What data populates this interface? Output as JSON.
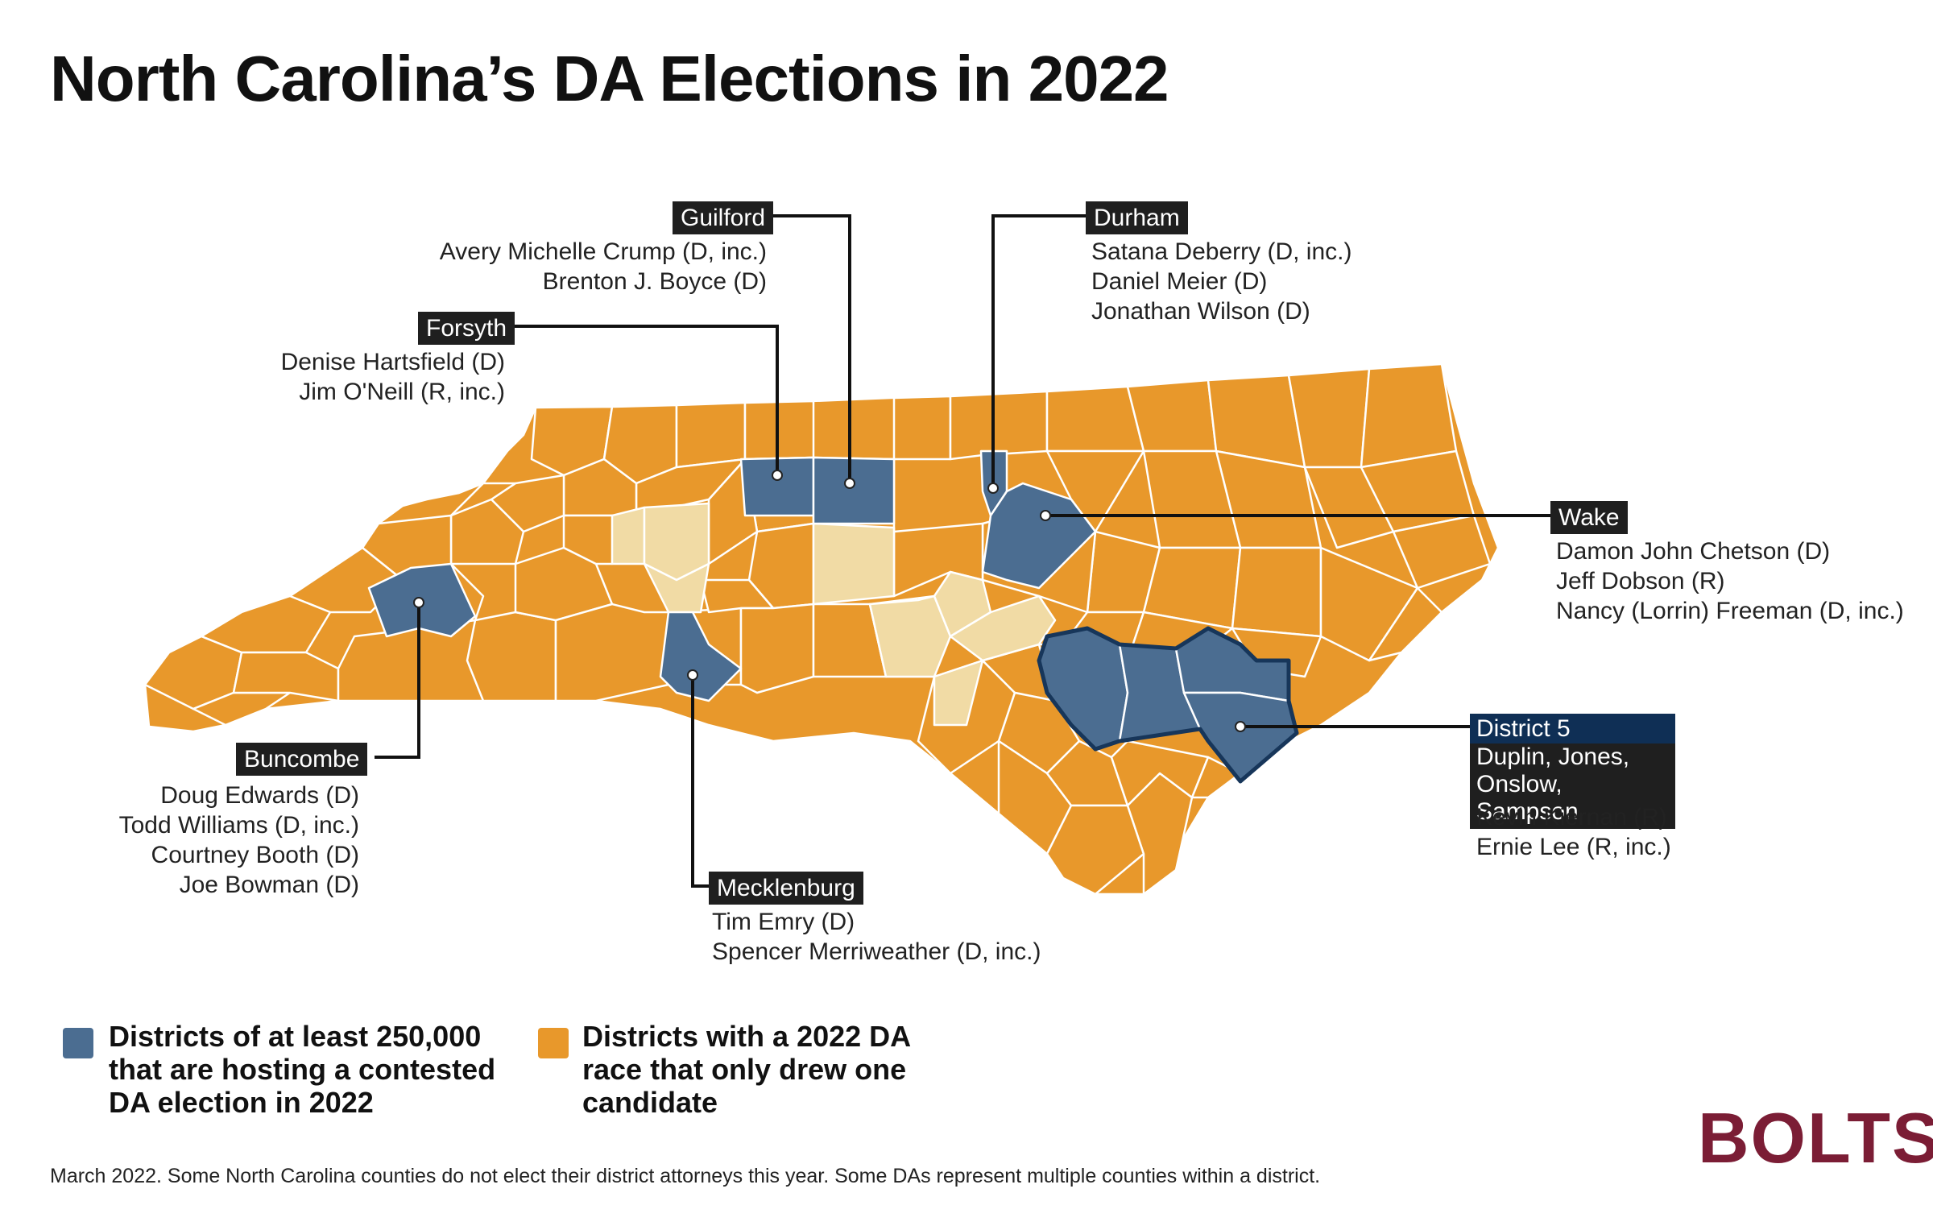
{
  "title": "North Carolina’s DA Elections in 2022",
  "colors": {
    "contested": "#4b6d91",
    "single_candidate": "#e8982b",
    "no_election": "#f1dba5",
    "district_outline": "#17365a",
    "brand": "#7b1d35"
  },
  "districts": {
    "guilford": {
      "label": "Guilford",
      "candidates": [
        "Avery Michelle Crump (D, inc.)",
        "Brenton J. Boyce (D)"
      ]
    },
    "forsyth": {
      "label": "Forsyth",
      "candidates": [
        "Denise Hartsfield (D)",
        "Jim O'Neill (R, inc.)"
      ]
    },
    "durham": {
      "label": "Durham",
      "candidates": [
        "Satana Deberry (D, inc.)",
        "Daniel Meier (D)",
        "Jonathan Wilson (D)"
      ]
    },
    "wake": {
      "label": "Wake",
      "candidates": [
        "Damon John Chetson (D)",
        "Jeff Dobson (R)",
        "Nancy (Lorrin) Freeman (D, inc.)"
      ]
    },
    "buncombe": {
      "label": "Buncombe",
      "candidates": [
        "Doug Edwards (D)",
        "Todd Williams (D, inc.)",
        "Courtney Booth (D)",
        "Joe Bowman (D)"
      ]
    },
    "mecklenburg": {
      "label": "Mecklenburg",
      "candidates": [
        "Tim Emry (D)",
        "Spencer Merriweather (D, inc.)"
      ]
    },
    "district5": {
      "label": "District 5",
      "counties_line1": "Duplin, Jones,",
      "counties_line2": "Onslow, Sampson",
      "candidates": [
        "Kevin Kiernan (R)",
        "Ernie Lee (R, inc.)"
      ]
    }
  },
  "legend": {
    "contested": [
      "Districts of at least 250,000",
      "that are hosting a contested",
      "DA election in 2022"
    ],
    "single": [
      "Districts with a 2022 DA",
      "race that only drew one",
      "candidate"
    ]
  },
  "footnote": "March 2022. Some North Carolina counties do not elect their district attorneys this year. Some DAs represent multiple counties within a district.",
  "logo": "BOLTS"
}
